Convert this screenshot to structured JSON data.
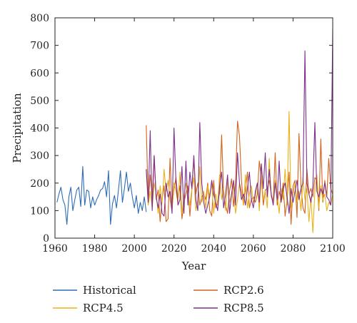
{
  "chart_data": {
    "type": "line",
    "xlabel": "Year",
    "ylabel": "Precipitation",
    "xlim": [
      1960,
      2100
    ],
    "ylim": [
      0,
      800
    ],
    "x_ticks": [
      1960,
      1980,
      2000,
      2020,
      2040,
      2060,
      2080,
      2100
    ],
    "y_ticks": [
      0,
      100,
      200,
      300,
      400,
      500,
      600,
      700,
      800
    ],
    "grid": false,
    "legend_position": "bottom",
    "series": [
      {
        "name": "Historical",
        "color": "#2e6db4",
        "x_start": 1961,
        "values": [
          130,
          160,
          185,
          140,
          120,
          50,
          150,
          185,
          100,
          140,
          175,
          185,
          115,
          260,
          120,
          175,
          170,
          110,
          150,
          120,
          140,
          155,
          175,
          180,
          205,
          150,
          245,
          50,
          125,
          155,
          110,
          175,
          245,
          130,
          180,
          240,
          170,
          200,
          150,
          110,
          155,
          90,
          130,
          100,
          150,
          95
        ]
      },
      {
        "name": "RCP2.6",
        "color": "#d4621a",
        "x_start": 2006,
        "values": [
          410,
          130,
          230,
          150,
          300,
          140,
          175,
          60,
          140,
          190,
          60,
          70,
          290,
          110,
          180,
          220,
          140,
          190,
          70,
          130,
          160,
          190,
          80,
          175,
          290,
          160,
          200,
          120,
          150,
          160,
          140,
          200,
          100,
          80,
          210,
          110,
          130,
          165,
          375,
          165,
          120,
          90,
          170,
          215,
          115,
          200,
          425,
          370,
          210,
          120,
          175,
          240,
          110,
          140,
          150,
          130,
          160,
          280,
          220,
          120,
          175,
          180,
          210,
          160,
          130,
          310,
          120,
          170,
          140,
          200,
          80,
          140,
          240,
          50,
          190,
          210,
          75,
          380,
          190,
          110,
          90,
          250,
          160,
          180,
          150,
          220,
          210,
          100,
          360,
          130,
          210,
          150,
          290,
          180,
          160
        ]
      },
      {
        "name": "RCP4.5",
        "color": "#e8b21a",
        "x_start": 2006,
        "values": [
          250,
          120,
          170,
          110,
          200,
          160,
          90,
          190,
          130,
          250,
          170,
          210,
          140,
          100,
          200,
          170,
          130,
          240,
          90,
          150,
          200,
          160,
          120,
          180,
          220,
          100,
          140,
          260,
          130,
          170,
          110,
          190,
          150,
          200,
          90,
          160,
          120,
          230,
          140,
          180,
          100,
          210,
          130,
          160,
          190,
          90,
          140,
          200,
          170,
          120,
          230,
          110,
          160,
          190,
          130,
          150,
          200,
          100,
          240,
          140,
          170,
          110,
          290,
          150,
          130,
          210,
          160,
          90,
          180,
          140,
          250,
          120,
          460,
          110,
          160,
          200,
          130,
          170,
          100,
          220,
          140,
          180,
          60,
          150,
          20,
          170,
          230,
          110,
          190,
          140,
          160,
          100,
          130,
          120,
          160
        ]
      },
      {
        "name": "RCP8.5",
        "color": "#7e2f8e",
        "x_start": 2006,
        "values": [
          250,
          130,
          390,
          100,
          300,
          150,
          110,
          160,
          90,
          80,
          200,
          150,
          170,
          90,
          400,
          200,
          120,
          140,
          260,
          90,
          280,
          120,
          240,
          180,
          300,
          140,
          100,
          420,
          200,
          130,
          90,
          120,
          150,
          210,
          160,
          130,
          100,
          190,
          240,
          110,
          160,
          230,
          90,
          160,
          210,
          120,
          310,
          200,
          140,
          160,
          120,
          180,
          240,
          140,
          110,
          170,
          200,
          130,
          270,
          180,
          310,
          150,
          250,
          160,
          120,
          200,
          140,
          280,
          130,
          180,
          200,
          150,
          90,
          180,
          130,
          170,
          210,
          140,
          180,
          200,
          680,
          200,
          160,
          130,
          190,
          420,
          170,
          150,
          180,
          160,
          200,
          150,
          140,
          120,
          760
        ]
      }
    ]
  }
}
